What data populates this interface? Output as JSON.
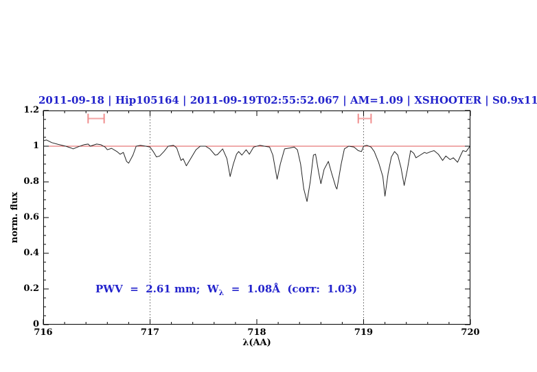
{
  "title": {
    "text": "2011-09-18 | Hip105164 | 2011-09-19T02:55:52.067 | AM=1.09 | XSHOOTER | S0.9x11",
    "color": "#2323cc"
  },
  "annotation": {
    "prefix": "PWV  =  2.61 mm;  W",
    "subscript": "λ",
    "suffix": "  =  1.08Å  (corr:  1.03)",
    "color": "#2323cc"
  },
  "chart_data": {
    "type": "line",
    "title": "2011-09-18 | Hip105164 | 2011-09-19T02:55:52.067 | AM=1.09 | XSHOOTER | S0.9x11",
    "xlabel": "λ(AA)",
    "ylabel": "norm. flux",
    "xlim": [
      716,
      720
    ],
    "ylim": [
      0,
      1.2
    ],
    "grid": false,
    "x_major_ticks": [
      716,
      717,
      718,
      719,
      720
    ],
    "x_tick_labels": [
      "716",
      "717",
      "718",
      "719",
      "720"
    ],
    "x_minor_step": 0.2,
    "y_major_ticks": [
      0,
      0.2,
      0.4,
      0.6,
      0.8,
      1,
      1.2
    ],
    "y_tick_labels": [
      "0",
      "0.2",
      "0.4",
      "0.6",
      "0.8",
      "1",
      "1.2"
    ],
    "y_minor_step": 0.05,
    "continuum_line": {
      "y": 1.0,
      "color": "#e05555"
    },
    "vlines": {
      "x": [
        717,
        719
      ],
      "style": "dotted",
      "color": "#555555"
    },
    "markers": [
      {
        "x1": 716.42,
        "x2": 716.57,
        "y": 1.155,
        "cap_half": 0.027,
        "color": "#f08d8d"
      },
      {
        "x1": 718.95,
        "x2": 719.07,
        "y": 1.155,
        "cap_half": 0.027,
        "color": "#f08d8d"
      }
    ],
    "series": [
      {
        "name": "telluric-spectrum",
        "color": "#222222",
        "x": [
          716.0,
          716.03,
          716.08,
          716.14,
          716.21,
          716.26,
          716.28,
          716.32,
          716.38,
          716.42,
          716.44,
          716.5,
          716.54,
          716.58,
          716.6,
          716.64,
          716.69,
          716.72,
          716.75,
          716.78,
          716.8,
          716.84,
          716.87,
          716.91,
          716.96,
          717.0,
          717.03,
          717.06,
          717.09,
          717.13,
          717.17,
          717.22,
          717.25,
          717.29,
          717.31,
          717.34,
          717.38,
          717.43,
          717.47,
          717.52,
          717.56,
          717.61,
          717.63,
          717.68,
          717.72,
          717.75,
          717.78,
          717.81,
          717.83,
          717.86,
          717.9,
          717.93,
          717.97,
          718.03,
          718.07,
          718.12,
          718.15,
          718.19,
          718.22,
          718.26,
          718.31,
          718.35,
          718.38,
          718.41,
          718.44,
          718.47,
          718.5,
          718.53,
          718.55,
          718.58,
          718.6,
          718.63,
          718.67,
          718.7,
          718.74,
          718.75,
          718.79,
          718.82,
          718.86,
          718.91,
          718.95,
          718.98,
          719.0,
          719.03,
          719.07,
          719.1,
          719.14,
          719.18,
          719.2,
          719.23,
          719.26,
          719.29,
          719.32,
          719.35,
          719.38,
          719.41,
          719.44,
          719.47,
          719.49,
          719.53,
          719.57,
          719.59,
          719.63,
          719.66,
          719.7,
          719.74,
          719.77,
          719.81,
          719.84,
          719.88,
          719.91,
          719.93,
          719.96,
          719.99,
          720.0
        ],
        "y": [
          1.03,
          1.035,
          1.02,
          1.01,
          1.0,
          0.99,
          0.985,
          0.995,
          1.008,
          1.012,
          1.0,
          1.012,
          1.008,
          0.995,
          0.98,
          0.988,
          0.97,
          0.955,
          0.965,
          0.915,
          0.905,
          0.95,
          1.0,
          1.005,
          1.0,
          0.995,
          0.97,
          0.94,
          0.945,
          0.97,
          1.0,
          1.005,
          0.99,
          0.92,
          0.93,
          0.89,
          0.93,
          0.98,
          1.0,
          1.0,
          0.985,
          0.95,
          0.952,
          0.985,
          0.93,
          0.83,
          0.9,
          0.955,
          0.97,
          0.95,
          0.98,
          0.955,
          0.995,
          1.005,
          1.0,
          0.995,
          0.95,
          0.815,
          0.9,
          0.985,
          0.99,
          0.995,
          0.98,
          0.9,
          0.76,
          0.69,
          0.8,
          0.95,
          0.955,
          0.85,
          0.79,
          0.87,
          0.915,
          0.85,
          0.77,
          0.76,
          0.9,
          0.985,
          1.0,
          0.995,
          0.975,
          0.97,
          1.0,
          1.005,
          0.995,
          0.97,
          0.91,
          0.83,
          0.72,
          0.85,
          0.94,
          0.97,
          0.95,
          0.88,
          0.78,
          0.87,
          0.975,
          0.96,
          0.935,
          0.95,
          0.965,
          0.96,
          0.97,
          0.975,
          0.955,
          0.92,
          0.945,
          0.925,
          0.935,
          0.91,
          0.95,
          0.975,
          0.97,
          0.995,
          1.0
        ]
      }
    ]
  }
}
